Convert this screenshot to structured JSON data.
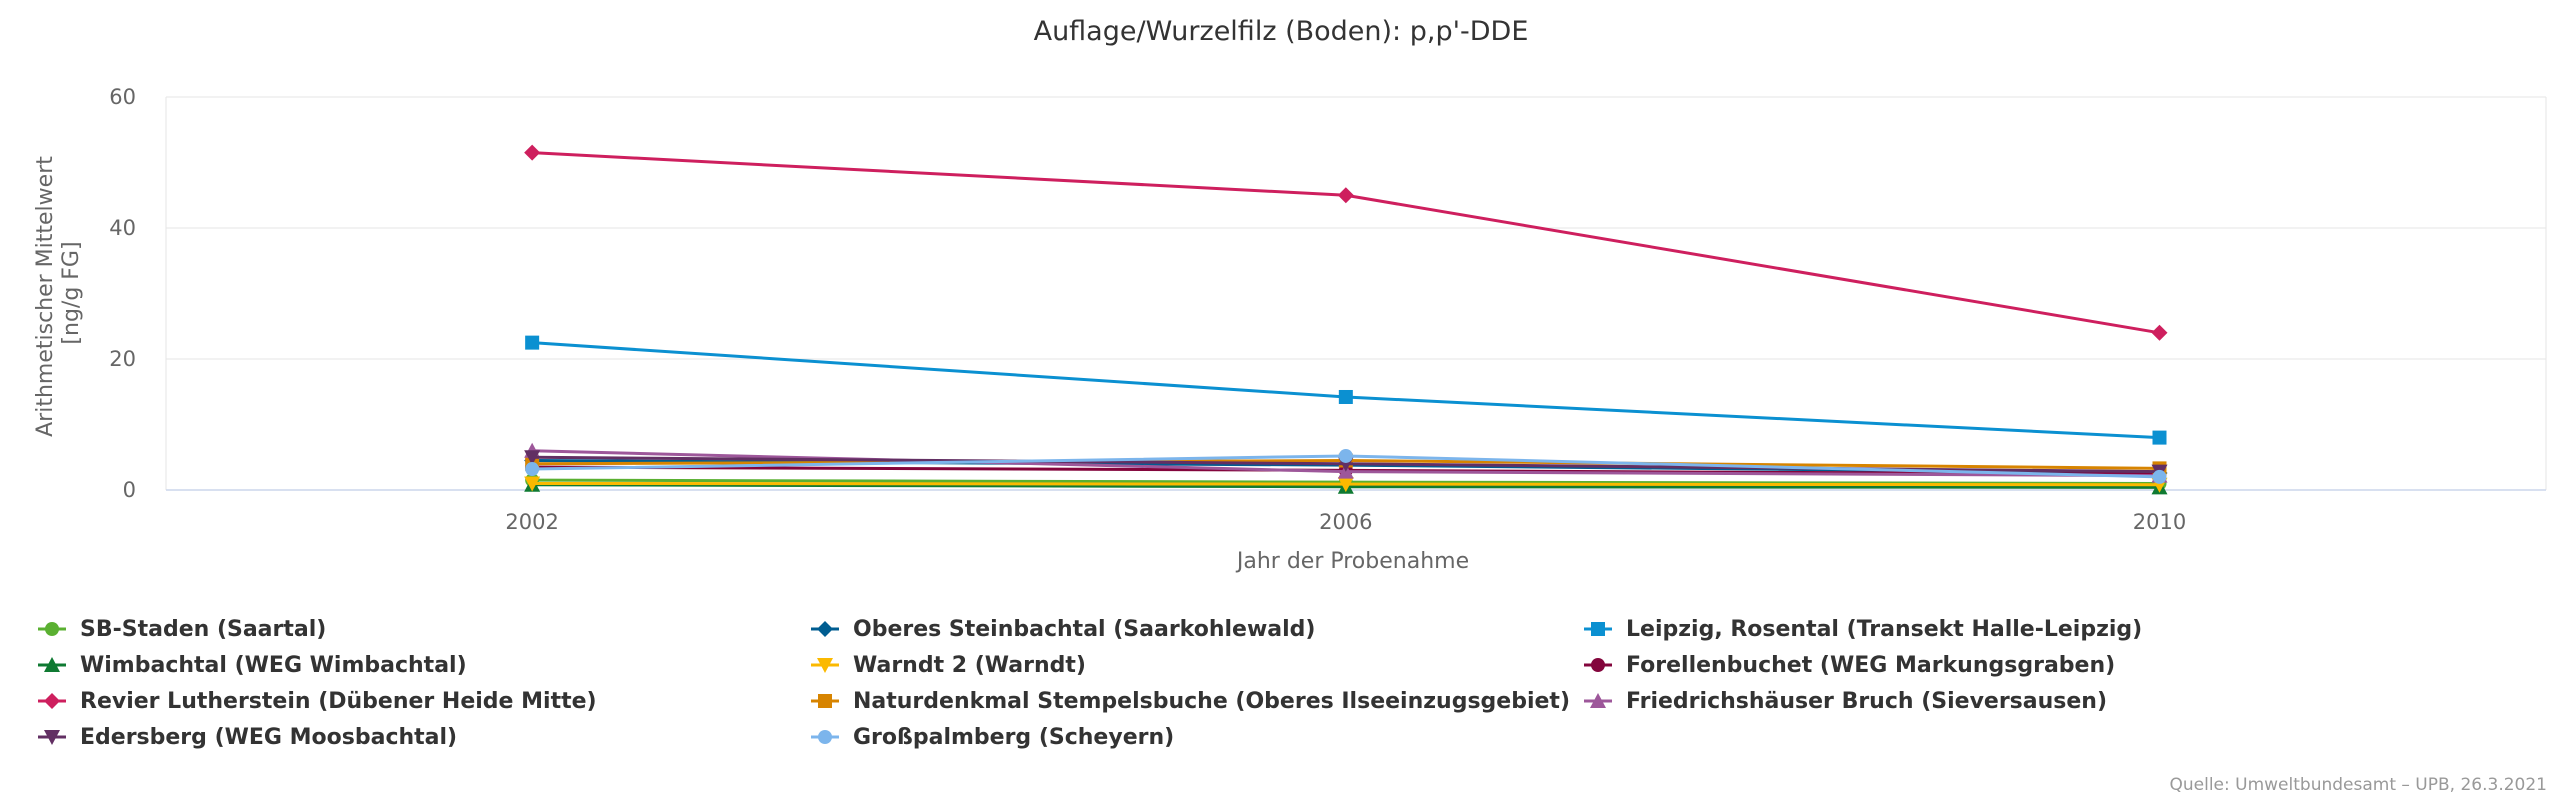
{
  "chart_data": {
    "type": "line",
    "title": "Auflage/Wurzelfilz (Boden): p,p'-DDE",
    "xlabel": "Jahr der Probenahme",
    "ylabel": [
      "Arithmetischer Mittelwert",
      "[ng/g FG]"
    ],
    "x": [
      "2002",
      "2006",
      "2010"
    ],
    "x_range": [
      2000.2,
      2011.9
    ],
    "ylim": [
      0,
      60
    ],
    "yticks": [
      0,
      20,
      40,
      60
    ],
    "legend_position": "bottom",
    "credit": "Quelle: Umweltbundesamt – UPB, 26.3.2021",
    "series": [
      {
        "name": "SB-Staden (Saartal)",
        "color": "#5ab031",
        "marker": "circle",
        "values": [
          1.5,
          1.2,
          1.0
        ]
      },
      {
        "name": "Oberes Steinbachtal (Saarkohlewald)",
        "color": "#005d91",
        "marker": "diamond",
        "values": [
          4.5,
          3.8,
          2.6
        ]
      },
      {
        "name": "Leipzig, Rosental (Transekt Halle-Leipzig)",
        "color": "#0b90d1",
        "marker": "square",
        "values": [
          22.5,
          14.2,
          8.0
        ]
      },
      {
        "name": "Wimbachtal (WEG Wimbachtal)",
        "color": "#0f7a32",
        "marker": "triangle",
        "values": [
          0.8,
          0.5,
          0.4
        ]
      },
      {
        "name": "Warndt 2 (Warndt)",
        "color": "#fbb900",
        "marker": "triangle-down",
        "values": [
          1.0,
          0.9,
          0.8
        ]
      },
      {
        "name": "Forellenbuchet (WEG Markungsgraben)",
        "color": "#83053c",
        "marker": "circle",
        "values": [
          3.5,
          3.0,
          2.4
        ]
      },
      {
        "name": "Revier Lutherstein (Dübener Heide Mitte)",
        "color": "#ce1f5e",
        "marker": "diamond",
        "values": [
          51.5,
          45.0,
          24.0
        ]
      },
      {
        "name": "Naturdenkmal Stempelsbuche (Oberes Ilseeinzugsgebiet)",
        "color": "#d78400",
        "marker": "square",
        "values": [
          4.0,
          4.5,
          3.3
        ]
      },
      {
        "name": "Friedrichshäuser Bruch (Sieversausen)",
        "color": "#9d579a",
        "marker": "triangle",
        "values": [
          6.0,
          2.8,
          2.2
        ]
      },
      {
        "name": "Edersberg (WEG Moosbachtal)",
        "color": "#622f63",
        "marker": "triangle-down",
        "values": [
          5.0,
          4.0,
          2.8
        ]
      },
      {
        "name": "Großpalmberg (Scheyern)",
        "color": "#7cb5ec",
        "marker": "circle",
        "values": [
          3.2,
          5.2,
          2.0
        ]
      }
    ]
  }
}
